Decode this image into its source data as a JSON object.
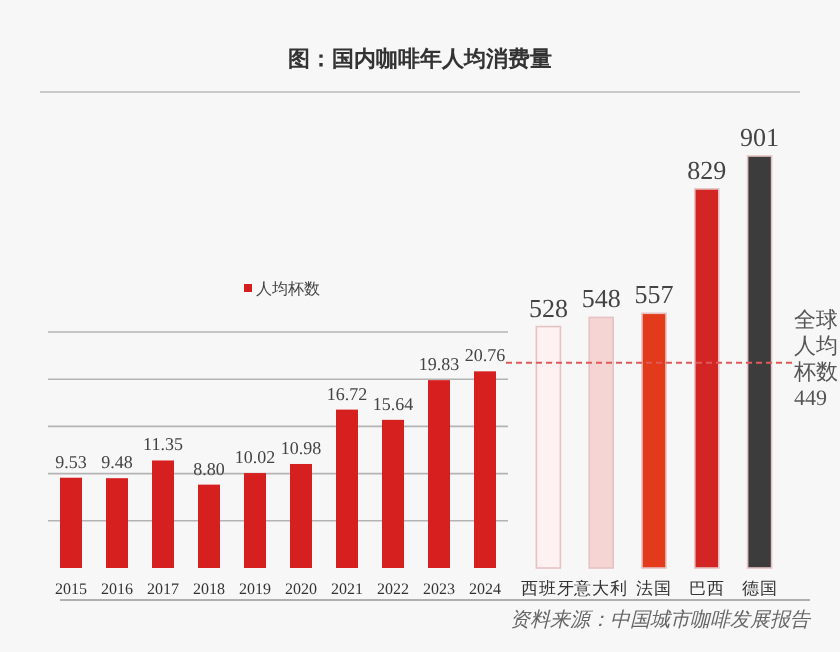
{
  "chart_data": [
    {
      "type": "bar",
      "title": "图：国内咖啡年人均消费量",
      "categories": [
        "2015",
        "2016",
        "2017",
        "2018",
        "2019",
        "2020",
        "2021",
        "2022",
        "2023",
        "2024"
      ],
      "series": [
        {
          "name": "人均杯数",
          "color": "#d61f1f",
          "values": [
            9.53,
            9.48,
            11.35,
            8.8,
            10.02,
            10.98,
            16.72,
            15.64,
            19.83,
            20.76
          ],
          "value_labels": [
            "9.53",
            "9.48",
            "11.35",
            "8.80",
            "10.02",
            "10.98",
            "16.72",
            "15.64",
            "19.83",
            "20.76"
          ]
        }
      ],
      "grid": "y",
      "legend": "top",
      "annotations": [
        "资料来源：中国城市咖啡发展报告"
      ]
    },
    {
      "type": "bar",
      "categories": [
        "西班牙",
        "意大利",
        "法国",
        "巴西",
        "德国"
      ],
      "values": [
        528,
        548,
        557,
        829,
        901
      ],
      "colors": [
        "#fdf1f1",
        "#f5d4d4",
        "#e23a1a",
        "#d42525",
        "#3c3c3c"
      ],
      "data_labels": true,
      "ref_lines": [
        {
          "axis": "y",
          "value": 449,
          "label": "全球人均杯数449",
          "color": "#e05a5a",
          "line_style": "dashed"
        }
      ]
    }
  ]
}
